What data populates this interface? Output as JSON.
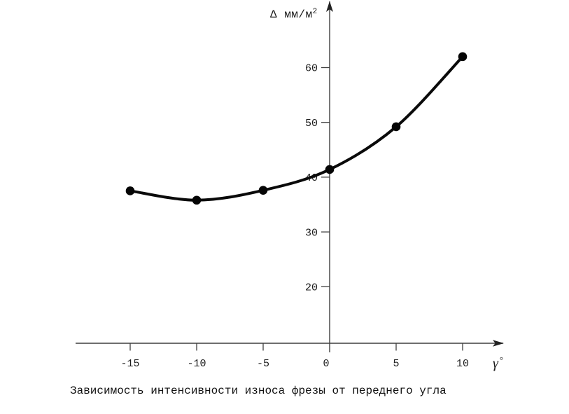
{
  "figure": {
    "y_axis_unit": {
      "base": "Δ мм/м",
      "sup": "2"
    },
    "x_axis_unit": {
      "base": "γ",
      "sup": "°"
    },
    "caption": "Зависимость интенсивности износа фрезы от переднего угла"
  },
  "chart_data": {
    "type": "line",
    "x": [
      -15,
      -10,
      -5,
      0,
      5,
      10
    ],
    "series": [
      {
        "name": "интенсивность износа фрезы",
        "values": [
          37.5,
          35.8,
          37.6,
          41.4,
          49.2,
          62.0
        ]
      }
    ],
    "title": "Зависимость интенсивности износа фрезы от переднего угла",
    "xlabel": "γ°",
    "ylabel": "Δ мм/м²",
    "x_ticks": [
      -15,
      -10,
      -5,
      0,
      5,
      10
    ],
    "y_ticks": [
      20,
      30,
      40,
      50,
      60
    ],
    "xlim": [
      -19,
      13
    ],
    "ylim": [
      9.5,
      72.5
    ],
    "grid": false,
    "legend": false,
    "marker": "filled-circle",
    "line_color": "#0a0a0a",
    "axis_color": "#3f3f3f"
  }
}
